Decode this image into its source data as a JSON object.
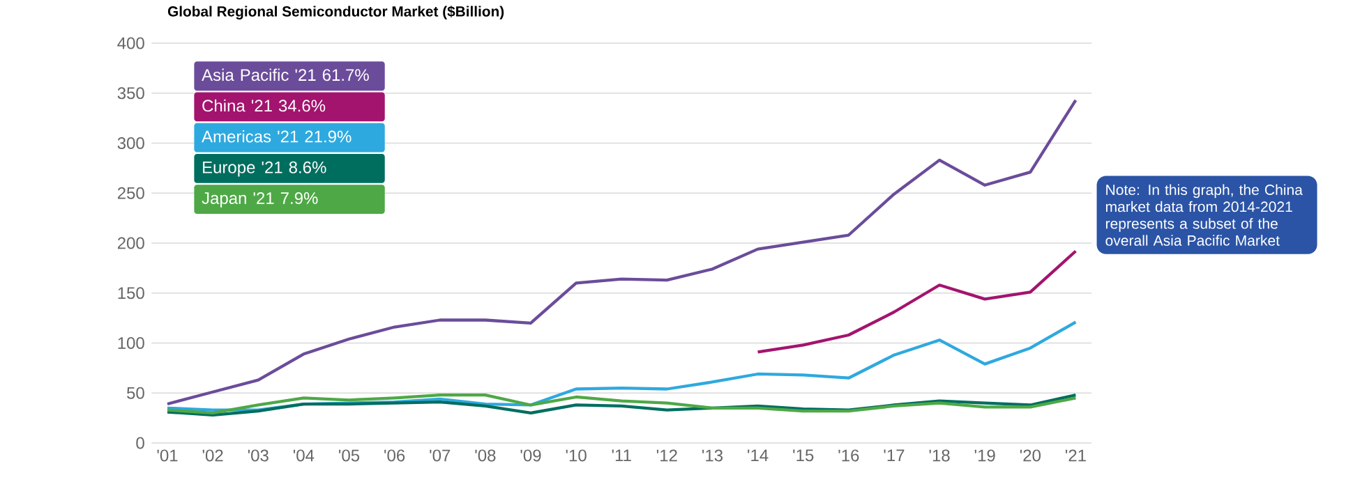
{
  "chart_data": {
    "type": "line",
    "title": "Global Regional Semiconductor Market ($Billion)",
    "categories": [
      "'01",
      "'02",
      "'03",
      "'04",
      "'05",
      "'06",
      "'07",
      "'08",
      "'09",
      "'10",
      "'11",
      "'12",
      "'13",
      "'14",
      "'15",
      "'16",
      "'17",
      "'18",
      "'19",
      "'20",
      "'21"
    ],
    "series": [
      {
        "name": "Asia Pacific '21  61.7%",
        "color": "#6b4c9a",
        "values": [
          39,
          51,
          63,
          89,
          104,
          116,
          123,
          123,
          120,
          160,
          164,
          163,
          174,
          194,
          201,
          208,
          249,
          283,
          258,
          271,
          343
        ]
      },
      {
        "name": "China '21  34.6%",
        "color": "#a3146e",
        "values": [
          null,
          null,
          null,
          null,
          null,
          null,
          null,
          null,
          null,
          null,
          null,
          null,
          null,
          91,
          98,
          108,
          131,
          158,
          144,
          151,
          192
        ]
      },
      {
        "name": "Americas '21  21.9%",
        "color": "#2ea9df",
        "values": [
          35,
          33,
          33,
          39,
          40,
          41,
          44,
          39,
          38,
          54,
          55,
          54,
          61,
          69,
          68,
          65,
          88,
          103,
          79,
          95,
          121
        ]
      },
      {
        "name": "Europe '21  8.6%",
        "color": "#006e5f",
        "values": [
          31,
          28,
          32,
          39,
          39,
          40,
          41,
          37,
          30,
          38,
          37,
          33,
          35,
          37,
          34,
          33,
          38,
          42,
          40,
          38,
          48
        ]
      },
      {
        "name": "Japan '21  7.9%",
        "color": "#4ea846",
        "values": [
          33,
          30,
          38,
          45,
          43,
          45,
          48,
          48,
          38,
          46,
          42,
          40,
          35,
          35,
          32,
          32,
          37,
          40,
          36,
          36,
          45
        ]
      }
    ],
    "ylim": [
      0,
      400
    ],
    "yticks": [
      0,
      50,
      100,
      150,
      200,
      250,
      300,
      350,
      400
    ],
    "grid": "y",
    "legend": "top left",
    "annotations": [
      "Note: In this graph, the China market data from 2014-2021 represents a subset of the overall Asia Pacific Market"
    ]
  }
}
